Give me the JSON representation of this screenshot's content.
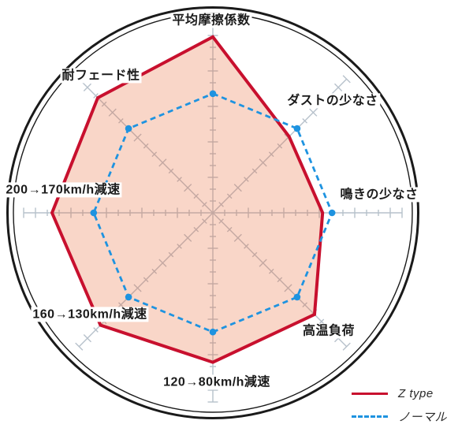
{
  "chart_data": {
    "type": "radar",
    "title": "",
    "center": [
      270,
      270
    ],
    "axis_radius": 240,
    "tick_step": 15,
    "ring_outer_radius": 260.5,
    "ring_inner_radius": 253,
    "scale_max": 5,
    "grid": "8 spokes with cross ticks every step, tall tick every 3rd step, double outer circle",
    "colors": {
      "ring": "#1a1a1a",
      "axis": "#b7c1cb",
      "z_type": "#c8102e",
      "normal": "#1e93e0",
      "z_type_fill": "rgba(233,102,52,0.27)"
    },
    "axes": [
      {
        "label": "平均摩擦係数",
        "angle_deg": 0
      },
      {
        "label": "ダストの少なさ",
        "angle_deg": 45
      },
      {
        "label": "鳴きの少なさ",
        "angle_deg": 90
      },
      {
        "label": "高温負荷",
        "angle_deg": 135
      },
      {
        "label": "120→80km/h減速",
        "angle_deg": 180
      },
      {
        "label": "160→130km/h減速",
        "angle_deg": 225
      },
      {
        "label": "200→170km/h減速",
        "angle_deg": 270
      },
      {
        "label": "耐フェード性",
        "angle_deg": 315
      }
    ],
    "series": [
      {
        "key": "z-type",
        "name": "Z type",
        "style": "solid",
        "color": "#c8102e",
        "fill": "rgba(233,102,52,0.27)",
        "stroke_width": 4,
        "values": [
          4.65,
          2.85,
          2.9,
          3.8,
          3.95,
          4.2,
          4.25,
          4.3
        ]
      },
      {
        "key": "normal",
        "name": "ノーマル",
        "style": "dashed",
        "color": "#1e93e0",
        "fill": "none",
        "stroke_width": 2.8,
        "dot_radius": 4.3,
        "values": [
          3.15,
          3.15,
          3.15,
          3.15,
          3.15,
          3.15,
          3.15,
          3.15
        ]
      }
    ],
    "legend_position": "bottom-right"
  }
}
